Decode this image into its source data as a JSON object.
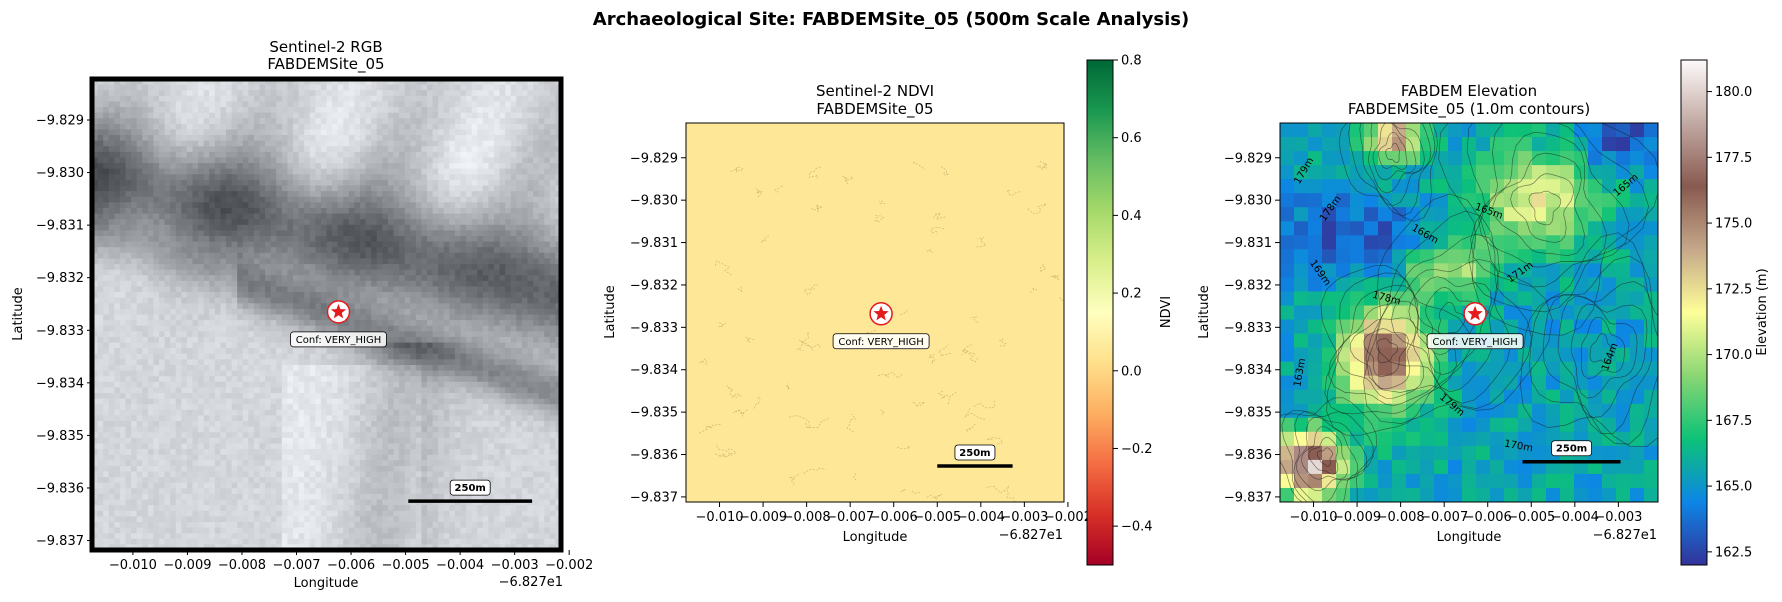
{
  "figure": {
    "suptitle": "Archaeological Site: FABDEMSite_05 (500m Scale Analysis)"
  },
  "chart_data": [
    {
      "type": "heatmap",
      "panel": "rgb",
      "title_line1": "Sentinel-2 RGB",
      "title_line2": "FABDEMSite_05",
      "xlabel": "Longitude",
      "ylabel": "Latitude",
      "x_ticks": [
        "−0.010",
        "−0.009",
        "−0.008",
        "−0.007",
        "−0.006",
        "−0.005",
        "−0.004",
        "−0.003",
        "−0.002"
      ],
      "x_tick_values": [
        -0.01,
        -0.009,
        -0.008,
        -0.007,
        -0.006,
        -0.005,
        -0.004,
        -0.003,
        -0.002
      ],
      "x_offset": "−6.827e1",
      "xlim": [
        -0.01075,
        -0.00215
      ],
      "y_ticks": [
        "−9.829",
        "−9.830",
        "−9.831",
        "−9.832",
        "−9.833",
        "−9.834",
        "−9.835",
        "−9.836",
        "−9.837"
      ],
      "y_tick_values": [
        -9.829,
        -9.83,
        -9.831,
        -9.832,
        -9.833,
        -9.834,
        -9.835,
        -9.836,
        -9.837
      ],
      "ylim": [
        -9.83718,
        -9.82822
      ],
      "site": {
        "lon": -0.00623,
        "lat": -9.83265,
        "label": "Conf: VERY_HIGH"
      },
      "scalebar": {
        "label": "250m",
        "lon_start": -0.00495,
        "lon_end": -0.00268,
        "lat": -9.83625
      }
    },
    {
      "type": "heatmap",
      "panel": "ndvi",
      "title_line1": "Sentinel-2 NDVI",
      "title_line2": "FABDEMSite_05",
      "xlabel": "Longitude",
      "ylabel": "Latitude",
      "x_ticks": [
        "−0.010",
        "−0.009",
        "−0.008",
        "−0.007",
        "−0.006",
        "−0.005",
        "−0.004",
        "−0.003",
        "−0.002"
      ],
      "x_tick_values": [
        -0.01,
        -0.009,
        -0.008,
        -0.007,
        -0.006,
        -0.005,
        -0.004,
        -0.003,
        -0.002
      ],
      "x_offset": "−6.827e1",
      "xlim": [
        -0.01077,
        -0.00209
      ],
      "y_ticks": [
        "−9.829",
        "−9.830",
        "−9.831",
        "−9.832",
        "−9.833",
        "−9.834",
        "−9.835",
        "−9.836",
        "−9.837"
      ],
      "y_tick_values": [
        -9.829,
        -9.83,
        -9.831,
        -9.832,
        -9.833,
        -9.834,
        -9.835,
        -9.836,
        -9.837
      ],
      "ylim": [
        -9.83712,
        -9.82818
      ],
      "site": {
        "lon": -0.00629,
        "lat": -9.83268,
        "label": "Conf: VERY_HIGH"
      },
      "scalebar": {
        "label": "250m",
        "lon_start": -0.005,
        "lon_end": -0.00327,
        "lat": -9.83627
      },
      "colorbar": {
        "label": "NDVI",
        "range": [
          -0.5,
          0.8
        ],
        "ticks": [
          "−0.4",
          "−0.2",
          "0.0",
          "0.2",
          "0.4",
          "0.6",
          "0.8"
        ],
        "tick_values": [
          -0.4,
          -0.2,
          0.0,
          0.2,
          0.4,
          0.6,
          0.8
        ],
        "colormap": [
          "#a50026",
          "#d73027",
          "#f46d43",
          "#fdae61",
          "#fee08b",
          "#ffffbf",
          "#d9ef8b",
          "#a6d96a",
          "#66bd63",
          "#1a9850",
          "#006837"
        ]
      },
      "field_value": 0.05
    },
    {
      "type": "heatmap",
      "panel": "elevation",
      "title_line1": "FABDEM Elevation",
      "title_line2": "FABDEMSite_05 (1.0m contours)",
      "xlabel": "Longitude",
      "ylabel": "Latitude",
      "x_ticks": [
        "−0.010",
        "−0.009",
        "−0.008",
        "−0.007",
        "−0.006",
        "−0.005",
        "−0.004",
        "−0.003"
      ],
      "x_tick_values": [
        -0.01,
        -0.009,
        -0.008,
        -0.007,
        -0.006,
        -0.005,
        -0.004,
        -0.003
      ],
      "x_offset": "−6.827e1",
      "xlim": [
        -0.01077,
        -0.00209
      ],
      "y_ticks": [
        "−9.829",
        "−9.830",
        "−9.831",
        "−9.832",
        "−9.833",
        "−9.834",
        "−9.835",
        "−9.836",
        "−9.837"
      ],
      "y_tick_values": [
        -9.829,
        -9.83,
        -9.831,
        -9.832,
        -9.833,
        -9.834,
        -9.835,
        -9.836,
        -9.837
      ],
      "ylim": [
        -9.83712,
        -9.82818
      ],
      "site": {
        "lon": -0.00629,
        "lat": -9.83268,
        "label": "Conf: VERY_HIGH"
      },
      "scalebar": {
        "label": "250m",
        "lon_start": -0.0052,
        "lon_end": -0.00295,
        "lat": -9.83617
      },
      "colorbar": {
        "label": "Elevation (m)",
        "range": [
          162.0,
          181.2
        ],
        "ticks": [
          "162.5",
          "165.0",
          "167.5",
          "170.0",
          "172.5",
          "175.0",
          "177.5",
          "180.0"
        ],
        "tick_values": [
          162.5,
          165.0,
          167.5,
          170.0,
          172.5,
          175.0,
          177.5,
          180.0
        ],
        "colormap": [
          "#333399",
          "#0d86e6",
          "#0dc277",
          "#8ad673",
          "#fefe98",
          "#c5a889",
          "#885a50",
          "#c2a9a3",
          "#fdfafa"
        ]
      },
      "contour_labels": [
        "179m",
        "178m",
        "165m",
        "166m",
        "171m",
        "169m",
        "164m",
        "163m",
        "170m"
      ]
    }
  ]
}
